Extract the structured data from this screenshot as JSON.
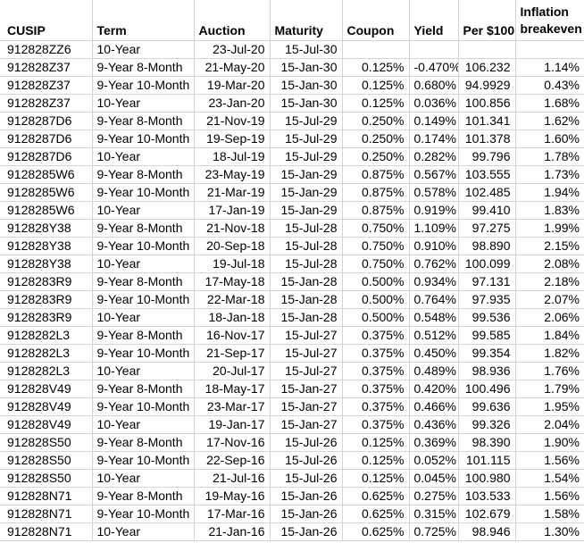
{
  "colors": {
    "background": "#ffffff",
    "gridline": "#d4d4d4",
    "text": "#000000"
  },
  "table": {
    "columns": [
      {
        "key": "cusip",
        "label": "CUSIP",
        "align": "left"
      },
      {
        "key": "term",
        "label": "Term",
        "align": "left"
      },
      {
        "key": "auction",
        "label": "Auction",
        "align": "right"
      },
      {
        "key": "maturity",
        "label": "Maturity",
        "align": "right"
      },
      {
        "key": "coupon",
        "label": "Coupon",
        "align": "right"
      },
      {
        "key": "yield",
        "label": "Yield",
        "align": "right"
      },
      {
        "key": "per_100",
        "label": "Per $100",
        "align": "right"
      },
      {
        "key": "inflation_breakeven",
        "label": "Inflation breakeven",
        "align": "right"
      }
    ],
    "rows": [
      [
        "912828ZZ6",
        "10-Year",
        "23-Jul-20",
        "15-Jul-30",
        "",
        "",
        "",
        ""
      ],
      [
        "912828Z37",
        "9-Year 8-Month",
        "21-May-20",
        "15-Jan-30",
        "0.125%",
        "-0.470%",
        "106.232",
        "1.14%"
      ],
      [
        "912828Z37",
        "9-Year 10-Month",
        "19-Mar-20",
        "15-Jan-30",
        "0.125%",
        "0.680%",
        "94.9929",
        "0.43%"
      ],
      [
        "912828Z37",
        "10-Year",
        "23-Jan-20",
        "15-Jan-30",
        "0.125%",
        "0.036%",
        "100.856",
        "1.68%"
      ],
      [
        "9128287D6",
        "9-Year 8-Month",
        "21-Nov-19",
        "15-Jul-29",
        "0.250%",
        "0.149%",
        "101.341",
        "1.62%"
      ],
      [
        "9128287D6",
        "9-Year 10-Month",
        "19-Sep-19",
        "15-Jul-29",
        "0.250%",
        "0.174%",
        "101.378",
        "1.60%"
      ],
      [
        "9128287D6",
        "10-Year",
        "18-Jul-19",
        "15-Jul-29",
        "0.250%",
        "0.282%",
        "99.796",
        "1.78%"
      ],
      [
        "9128285W6",
        "9-Year 8-Month",
        "23-May-19",
        "15-Jan-29",
        "0.875%",
        "0.567%",
        "103.555",
        "1.73%"
      ],
      [
        "9128285W6",
        "9-Year 10-Month",
        "21-Mar-19",
        "15-Jan-29",
        "0.875%",
        "0.578%",
        "102.485",
        "1.94%"
      ],
      [
        "9128285W6",
        "10-Year",
        "17-Jan-19",
        "15-Jan-29",
        "0.875%",
        "0.919%",
        "99.410",
        "1.83%"
      ],
      [
        "912828Y38",
        "9-Year 8-Month",
        "21-Nov-18",
        "15-Jul-28",
        "0.750%",
        "1.109%",
        "97.275",
        "1.99%"
      ],
      [
        "912828Y38",
        "9-Year 10-Month",
        "20-Sep-18",
        "15-Jul-28",
        "0.750%",
        "0.910%",
        "98.890",
        "2.15%"
      ],
      [
        "912828Y38",
        "10-Year",
        "19-Jul-18",
        "15-Jul-28",
        "0.750%",
        "0.762%",
        "100.099",
        "2.08%"
      ],
      [
        "9128283R9",
        "9-Year 8-Month",
        "17-May-18",
        "15-Jan-28",
        "0.500%",
        "0.934%",
        "97.131",
        "2.18%"
      ],
      [
        "9128283R9",
        "9-Year 10-Month",
        "22-Mar-18",
        "15-Jan-28",
        "0.500%",
        "0.764%",
        "97.935",
        "2.07%"
      ],
      [
        "9128283R9",
        "10-Year",
        "18-Jan-18",
        "15-Jan-28",
        "0.500%",
        "0.548%",
        "99.536",
        "2.06%"
      ],
      [
        "9128282L3",
        "9-Year 8-Month",
        "16-Nov-17",
        "15-Jul-27",
        "0.375%",
        "0.512%",
        "99.585",
        "1.84%"
      ],
      [
        "9128282L3",
        "9-Year 10-Month",
        "21-Sep-17",
        "15-Jul-27",
        "0.375%",
        "0.450%",
        "99.354",
        "1.82%"
      ],
      [
        "9128282L3",
        "10-Year",
        "20-Jul-17",
        "15-Jul-27",
        "0.375%",
        "0.489%",
        "98.936",
        "1.76%"
      ],
      [
        "912828V49",
        "9-Year 8-Month",
        "18-May-17",
        "15-Jan-27",
        "0.375%",
        "0.420%",
        "100.496",
        "1.79%"
      ],
      [
        "912828V49",
        "9-Year 10-Month",
        "23-Mar-17",
        "15-Jan-27",
        "0.375%",
        "0.466%",
        "99.636",
        "1.95%"
      ],
      [
        "912828V49",
        "10-Year",
        "19-Jan-17",
        "15-Jan-27",
        "0.375%",
        "0.436%",
        "99.326",
        "2.04%"
      ],
      [
        "912828S50",
        "9-Year 8-Month",
        "17-Nov-16",
        "15-Jul-26",
        "0.125%",
        "0.369%",
        "98.390",
        "1.90%"
      ],
      [
        "912828S50",
        "9-Year 10-Month",
        "22-Sep-16",
        "15-Jul-26",
        "0.125%",
        "0.052%",
        "101.115",
        "1.56%"
      ],
      [
        "912828S50",
        "10-Year",
        "21-Jul-16",
        "15-Jul-26",
        "0.125%",
        "0.045%",
        "100.980",
        "1.54%"
      ],
      [
        "912828N71",
        "9-Year 8-Month",
        "19-May-16",
        "15-Jan-26",
        "0.625%",
        "0.275%",
        "103.533",
        "1.56%"
      ],
      [
        "912828N71",
        "9-Year 10-Month",
        "17-Mar-16",
        "15-Jan-26",
        "0.625%",
        "0.315%",
        "102.679",
        "1.58%"
      ],
      [
        "912828N71",
        "10-Year",
        "21-Jan-16",
        "15-Jan-26",
        "0.625%",
        "0.725%",
        "98.946",
        "1.30%"
      ]
    ]
  }
}
